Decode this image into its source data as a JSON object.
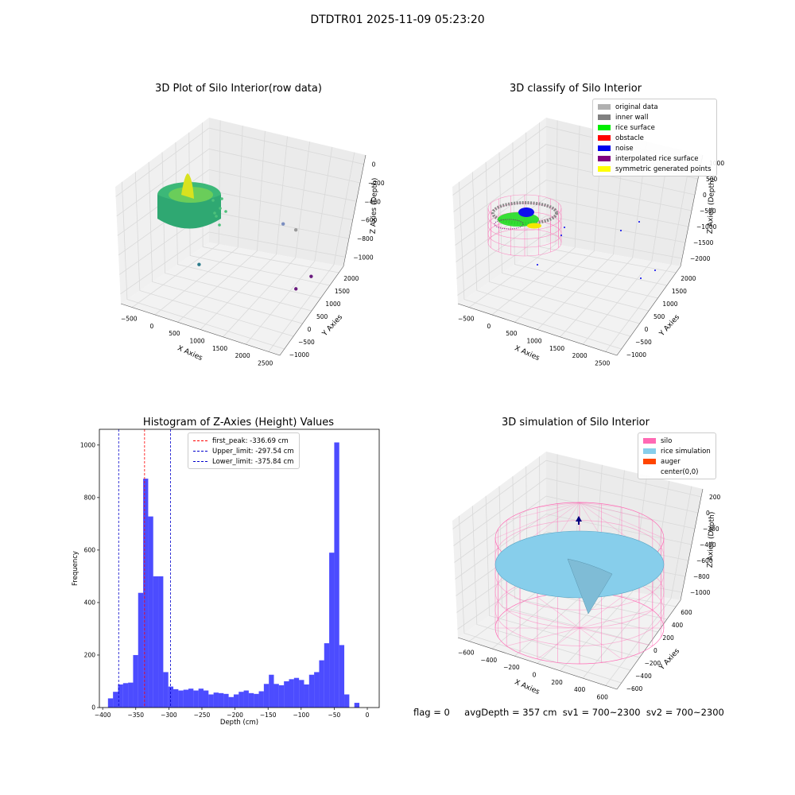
{
  "suptitle": "DTDTR01 2025-11-09 05:23:20",
  "footer": {
    "flag": "flag = 0",
    "stats": "avgDepth = 357 cm  sv1 = 700~2300  sv2 = 700~2300"
  },
  "chart_data": [
    {
      "type": "scatter",
      "title": "3D Plot of Silo Interior(row data)",
      "xlabel": "X Axies",
      "ylabel": "Y Axies",
      "zlabel": "Z Axies (Depth)",
      "x_ticks": [
        "−500",
        "0",
        "500",
        "1000",
        "1500",
        "2000",
        "2500"
      ],
      "y_ticks": [
        "−1000",
        "−500",
        "0",
        "500",
        "1000",
        "1500",
        "2000"
      ],
      "z_ticks": [
        "0",
        "−200",
        "−400",
        "−600",
        "−800",
        "−1000"
      ],
      "xlim": [
        -600,
        2700
      ],
      "ylim": [
        -1100,
        2100
      ],
      "zlim": [
        -1100,
        50
      ],
      "colormap": "viridis",
      "points": [
        {
          "x": 1400,
          "y": 1550,
          "z": -640,
          "color": "#7b8ec0"
        },
        {
          "x": 1650,
          "y": 1650,
          "z": -700,
          "color": "#9a9a9a"
        },
        {
          "x": 500,
          "y": -150,
          "z": -750,
          "color": "#2c7b8b"
        },
        {
          "x": 2300,
          "y": 1250,
          "z": -1000,
          "color": "#6a1b7e"
        },
        {
          "x": 2100,
          "y": 1000,
          "z": -1080,
          "color": "#6a1b7e"
        }
      ]
    },
    {
      "type": "scatter",
      "title": "3D classify of Silo Interior",
      "xlabel": "X Axies",
      "ylabel": "Y Axies",
      "zlabel": "Z Axies (Depth)",
      "x_ticks": [
        "−500",
        "0",
        "500",
        "1000",
        "1500",
        "2000",
        "2500"
      ],
      "y_ticks": [
        "−1000",
        "−500",
        "0",
        "500",
        "1000",
        "1500",
        "2000"
      ],
      "z_ticks": [
        "1000",
        "500",
        "0",
        "−500",
        "−1000",
        "−1500",
        "−2000"
      ],
      "xlim": [
        -600,
        2700
      ],
      "ylim": [
        -1100,
        2100
      ],
      "zlim": [
        -2100,
        1100
      ],
      "legend": [
        {
          "label": "original data",
          "color": "#b0b0b0"
        },
        {
          "label": "inner wall",
          "color": "#808080"
        },
        {
          "label": "rice surface",
          "color": "#00ee00"
        },
        {
          "label": "obstacle",
          "color": "#ff0000"
        },
        {
          "label": "noise",
          "color": "#0000ee"
        },
        {
          "label": "interpolated rice surface",
          "color": "#800080"
        },
        {
          "label": "symmetric generated points",
          "color": "#ffff00"
        }
      ]
    },
    {
      "type": "bar",
      "title": "Histogram of Z-Axies (Height) Values",
      "xlabel": "Depth (cm)",
      "ylabel": "Frequency",
      "xlim": [
        -405,
        18
      ],
      "ylim": [
        0,
        1060
      ],
      "x_ticks": [
        -400,
        -350,
        -300,
        -250,
        -200,
        -150,
        -100,
        -50,
        0
      ],
      "y_ticks": [
        0,
        200,
        400,
        600,
        800,
        1000
      ],
      "bin_edges_start": -392,
      "bin_width": 7.6,
      "values": [
        35,
        60,
        88,
        93,
        95,
        200,
        437,
        872,
        728,
        500,
        500,
        135,
        80,
        70,
        65,
        68,
        72,
        65,
        72,
        65,
        50,
        57,
        55,
        52,
        40,
        50,
        60,
        65,
        55,
        52,
        62,
        90,
        125,
        90,
        85,
        100,
        108,
        113,
        105,
        88,
        125,
        135,
        180,
        245,
        590,
        1010,
        238,
        50,
        0,
        18
      ],
      "color": "#0000ff",
      "vlines": [
        {
          "label": "first_peak: -336.69 cm",
          "x": -336.69,
          "color": "#ff0000"
        },
        {
          "label": "Upper_limit: -297.54 cm",
          "x": -297.54,
          "color": "#0000cc"
        },
        {
          "label": "Lower_limit: -375.84 cm",
          "x": -375.84,
          "color": "#0000cc"
        }
      ]
    },
    {
      "type": "area",
      "title": "3D simulation of Silo Interior",
      "xlabel": "X Axies",
      "ylabel": "Y Axies",
      "zlabel": "Z Axies (Depth)",
      "x_ticks": [
        "−600",
        "−400",
        "−200",
        "0",
        "200",
        "400",
        "600"
      ],
      "y_ticks": [
        "−600",
        "−400",
        "−200",
        "0",
        "200",
        "400",
        "600"
      ],
      "z_ticks": [
        "200",
        "0",
        "−200",
        "−400",
        "−600",
        "−800",
        "−1000"
      ],
      "legend": [
        {
          "label": "silo",
          "color": "#ff69b4"
        },
        {
          "label": "rice simulation",
          "color": "#87ceeb"
        },
        {
          "label": "auger",
          "color": "#ff4500"
        },
        {
          "label": "center(0,0)",
          "color": "#ffffff"
        }
      ]
    }
  ]
}
